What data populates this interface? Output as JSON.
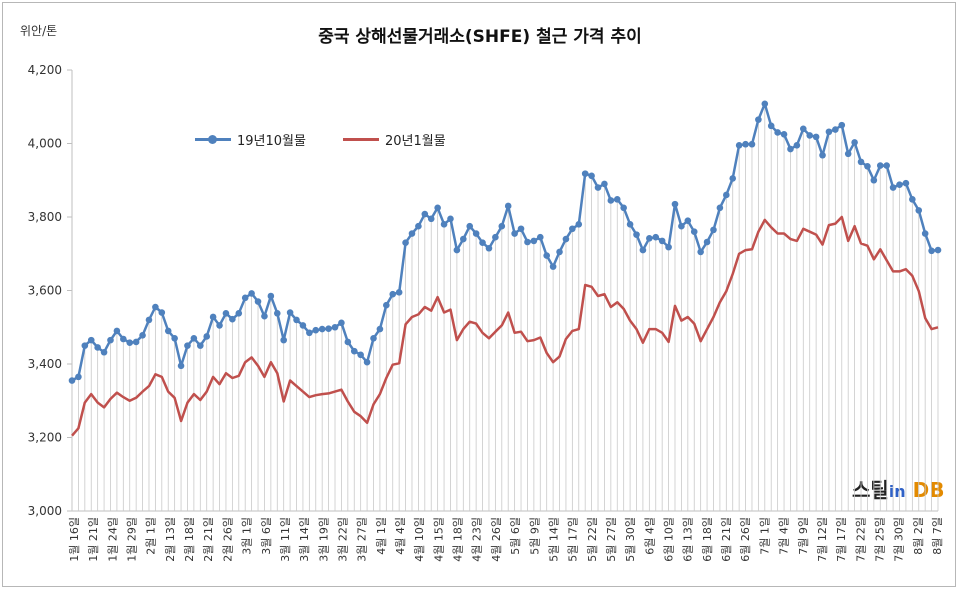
{
  "chart_data": {
    "type": "line",
    "title": "중국 상해선물거래소(SHFE) 철근 가격 추이",
    "unit_label": "위안/톤",
    "ylim": [
      3000,
      4200
    ],
    "yticks": [
      "3,000",
      "3,200",
      "3,400",
      "3,600",
      "3,800",
      "4,000",
      "4,200"
    ],
    "ytick_values": [
      3000,
      3200,
      3400,
      3600,
      3800,
      4000,
      4200
    ],
    "x_labels": [
      "1월 16일",
      "1월 21일",
      "1월 24일",
      "1월 29일",
      "2월 1일",
      "2월 13일",
      "2월 18일",
      "2월 21일",
      "2월 26일",
      "3월 1일",
      "3월 6일",
      "3월 11일",
      "3월 14일",
      "3월 19일",
      "3월 22일",
      "3월 27일",
      "4월 1일",
      "4월 4일",
      "4월 10일",
      "4월 15일",
      "4월 18일",
      "4월 23일",
      "4월 26일",
      "5월 6일",
      "5월 9일",
      "5월 14일",
      "5월 17일",
      "5월 22일",
      "5월 27일",
      "5월 30일",
      "6월 4일",
      "6월 10일",
      "6월 13일",
      "6월 18일",
      "6월 21일",
      "6월 26일",
      "7월 1일",
      "7월 4일",
      "7월 9일",
      "7월 12일",
      "7월 17일",
      "7월 22일",
      "7월 25일",
      "7월 30일",
      "8월 2일",
      "8월 7일"
    ],
    "grid": "vertical drop lines from series 1",
    "legend_position": "upper-left",
    "series": [
      {
        "name": "19년10월물",
        "color": "#4f81bd",
        "values": [
          3355,
          3365,
          3450,
          3465,
          3445,
          3432,
          3465,
          3490,
          3468,
          3458,
          3460,
          3478,
          3520,
          3555,
          3540,
          3490,
          3470,
          3395,
          3450,
          3470,
          3450,
          3475,
          3528,
          3505,
          3538,
          3522,
          3538,
          3580,
          3592,
          3570,
          3530,
          3585,
          3538,
          3465,
          3540,
          3520,
          3505,
          3485,
          3492,
          3495,
          3496,
          3500,
          3512,
          3460,
          3435,
          3425,
          3405,
          3470,
          3495,
          3560,
          3590,
          3595,
          3730,
          3755,
          3775,
          3808,
          3795,
          3825,
          3780,
          3795,
          3710,
          3740,
          3775,
          3755,
          3730,
          3715,
          3745,
          3775,
          3830,
          3755,
          3768,
          3732,
          3735,
          3745,
          3695,
          3665,
          3705,
          3740,
          3768,
          3780,
          3918,
          3912,
          3880,
          3890,
          3845,
          3848,
          3825,
          3780,
          3752,
          3710,
          3742,
          3745,
          3735,
          3718,
          3835,
          3775,
          3790,
          3760,
          3705,
          3732,
          3765,
          3825,
          3860,
          3905,
          3995,
          3998,
          3998,
          4065,
          4108,
          4048,
          4030,
          4025,
          3985,
          3995,
          4040,
          4022,
          4018,
          3968,
          4032,
          4038,
          4050,
          3972,
          4003,
          3950,
          3938,
          3900,
          3940,
          3940,
          3880,
          3888,
          3892,
          3848,
          3818,
          3755,
          3708,
          3710
        ]
      },
      {
        "name": "20년1월물",
        "color": "#c0504d",
        "values": [
          3205,
          3225,
          3295,
          3318,
          3295,
          3282,
          3305,
          3322,
          3310,
          3300,
          3308,
          3325,
          3340,
          3372,
          3365,
          3325,
          3308,
          3245,
          3295,
          3318,
          3302,
          3325,
          3365,
          3345,
          3375,
          3362,
          3368,
          3405,
          3418,
          3395,
          3365,
          3405,
          3375,
          3298,
          3355,
          3340,
          3325,
          3310,
          3315,
          3318,
          3320,
          3325,
          3330,
          3298,
          3270,
          3258,
          3240,
          3290,
          3318,
          3362,
          3398,
          3402,
          3508,
          3528,
          3535,
          3555,
          3545,
          3582,
          3540,
          3548,
          3465,
          3495,
          3515,
          3510,
          3485,
          3470,
          3488,
          3505,
          3540,
          3485,
          3488,
          3462,
          3465,
          3472,
          3430,
          3405,
          3420,
          3468,
          3490,
          3495,
          3615,
          3610,
          3585,
          3590,
          3555,
          3568,
          3550,
          3518,
          3495,
          3458,
          3495,
          3495,
          3485,
          3460,
          3558,
          3518,
          3528,
          3510,
          3462,
          3495,
          3528,
          3568,
          3598,
          3645,
          3700,
          3710,
          3712,
          3760,
          3792,
          3772,
          3755,
          3755,
          3740,
          3735,
          3768,
          3760,
          3752,
          3725,
          3778,
          3782,
          3800,
          3735,
          3775,
          3728,
          3722,
          3685,
          3712,
          3682,
          3652,
          3652,
          3658,
          3640,
          3598,
          3525,
          3495,
          3500
        ]
      }
    ]
  },
  "logo": {
    "text1": "스틸",
    "text2": "in",
    "text3": "DB"
  }
}
